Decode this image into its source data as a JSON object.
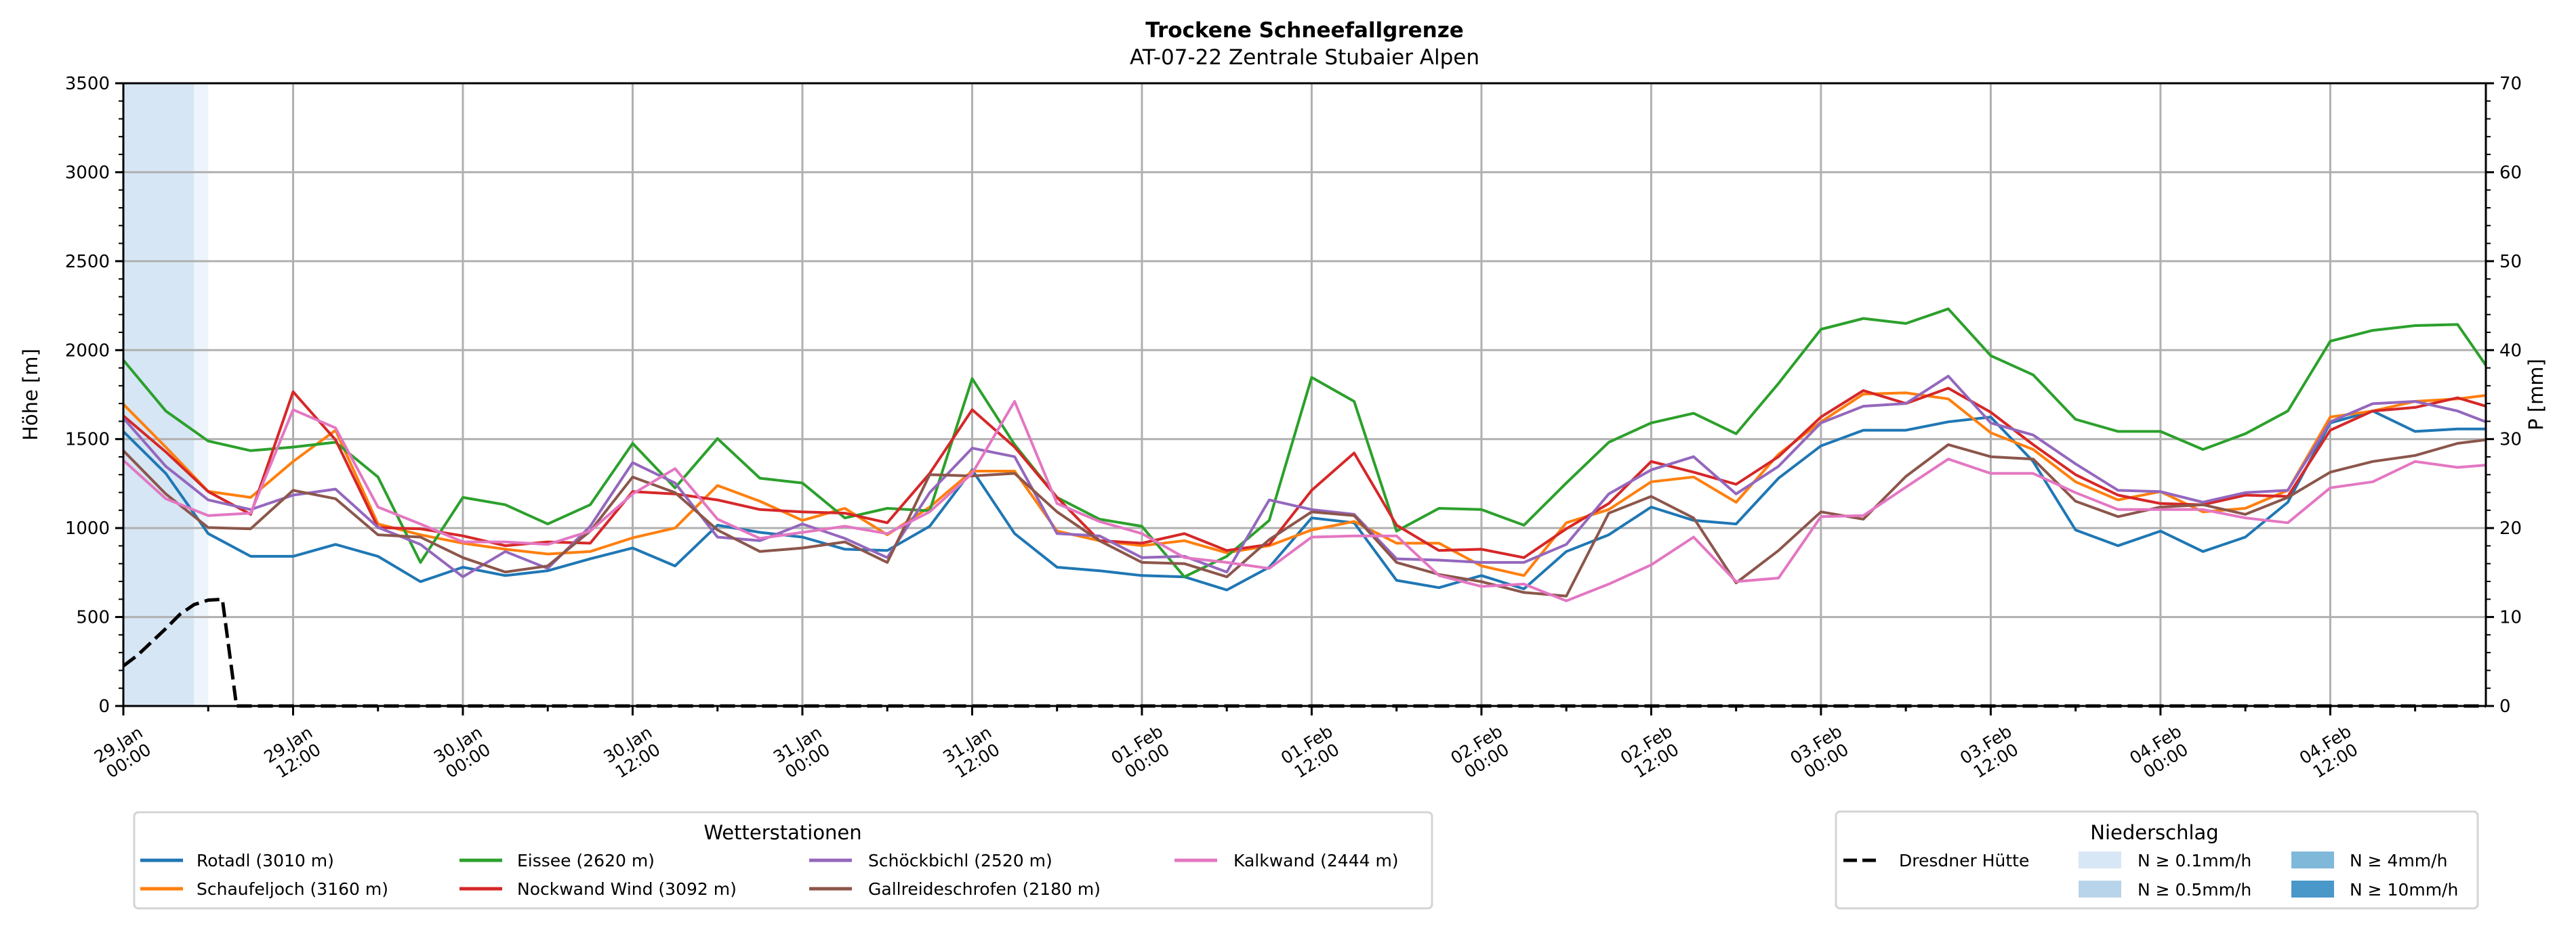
{
  "chart_data": {
    "type": "line",
    "title": "Trockene Schneefallgrenze",
    "subtitle": "AT-07-22 Zentrale Stubaier Alpen",
    "ylabel": "Höhe [m]",
    "ylabel_right": "P [mm]",
    "xlabel": "",
    "ylim": [
      0,
      3500
    ],
    "ylim_right": [
      0,
      70
    ],
    "yticks": [
      "0",
      "500",
      "1000",
      "1500",
      "2000",
      "2500",
      "3000",
      "3500"
    ],
    "yticks_right": [
      "0",
      "10",
      "20",
      "30",
      "40",
      "50",
      "60",
      "70"
    ],
    "x_unit": "hours since 29.Jan 00:00",
    "xlim_hours": [
      0,
      167
    ],
    "xticks": [
      {
        "hour": 0,
        "date": "29.Jan",
        "time": "00:00"
      },
      {
        "hour": 12,
        "date": "29.Jan",
        "time": "12:00"
      },
      {
        "hour": 24,
        "date": "30.Jan",
        "time": "00:00"
      },
      {
        "hour": 36,
        "date": "30.Jan",
        "time": "12:00"
      },
      {
        "hour": 48,
        "date": "31.Jan",
        "time": "00:00"
      },
      {
        "hour": 60,
        "date": "31.Jan",
        "time": "12:00"
      },
      {
        "hour": 72,
        "date": "01.Feb",
        "time": "00:00"
      },
      {
        "hour": 84,
        "date": "01.Feb",
        "time": "12:00"
      },
      {
        "hour": 96,
        "date": "02.Feb",
        "time": "00:00"
      },
      {
        "hour": 108,
        "date": "02.Feb",
        "time": "12:00"
      },
      {
        "hour": 120,
        "date": "03.Feb",
        "time": "00:00"
      },
      {
        "hour": 132,
        "date": "03.Feb",
        "time": "12:00"
      },
      {
        "hour": 144,
        "date": "04.Feb",
        "time": "00:00"
      },
      {
        "hour": 156,
        "date": "04.Feb",
        "time": "12:00"
      }
    ],
    "grid": true,
    "x": [
      0,
      3,
      6,
      9,
      12,
      15,
      18,
      21,
      24,
      27,
      30,
      33,
      36,
      39,
      42,
      45,
      48,
      51,
      54,
      57,
      60,
      63,
      66,
      69,
      72,
      75,
      78,
      81,
      84,
      87,
      90,
      93,
      96,
      99,
      102,
      105,
      108,
      111,
      114,
      117,
      120,
      123,
      126,
      129,
      132,
      135,
      138,
      141,
      144,
      147,
      150,
      153,
      156,
      159,
      162,
      165,
      167
    ],
    "series": [
      {
        "name": "Rotadl (3010 m)",
        "color": "#1f77b4",
        "values": [
          1543,
          1307,
          969,
          841,
          841,
          908,
          841,
          699,
          780,
          733,
          760,
          827,
          888,
          787,
          1016,
          976,
          949,
          881,
          874,
          1010,
          1327,
          969,
          780,
          760,
          733,
          726,
          652,
          780,
          1057,
          1030,
          706,
          665,
          733,
          658,
          868,
          962,
          1118,
          1043,
          1023,
          1280,
          1462,
          1550,
          1550,
          1597,
          1624,
          1374,
          989,
          901,
          983,
          868,
          949,
          1145,
          1591,
          1658,
          1543,
          1557,
          1557
        ]
      },
      {
        "name": "Schaufeljoch (3160 m)",
        "color": "#ff7f0e",
        "values": [
          1696,
          1455,
          1206,
          1172,
          1374,
          1550,
          1023,
          962,
          915,
          881,
          854,
          868,
          945,
          1000,
          1239,
          1151,
          1043,
          1111,
          962,
          1118,
          1320,
          1320,
          983,
          929,
          901,
          929,
          861,
          901,
          989,
          1037,
          915,
          915,
          787,
          733,
          1030,
          1104,
          1260,
          1287,
          1145,
          1415,
          1597,
          1753,
          1760,
          1726,
          1536,
          1442,
          1260,
          1158,
          1205,
          1091,
          1111,
          1212,
          1624,
          1658,
          1712,
          1726,
          1746
        ]
      },
      {
        "name": "Eissee (2620 m)",
        "color": "#2ca02c",
        "values": [
          1944,
          1658,
          1489,
          1435,
          1455,
          1482,
          1287,
          807,
          1172,
          1131,
          1023,
          1131,
          1476,
          1226,
          1503,
          1280,
          1253,
          1057,
          1111,
          1097,
          1840,
          1469,
          1172,
          1050,
          1010,
          726,
          841,
          1043,
          1847,
          1712,
          983,
          1111,
          1104,
          1016,
          1253,
          1482,
          1591,
          1645,
          1530,
          1813,
          2117,
          2178,
          2150,
          2232,
          1969,
          1861,
          1611,
          1543,
          1543,
          1442,
          1530,
          1658,
          2050,
          2111,
          2138,
          2144,
          1915
        ]
      },
      {
        "name": "Nockwand Wind (3092 m)",
        "color": "#d62728",
        "values": [
          1631,
          1428,
          1205,
          1077,
          1766,
          1496,
          1003,
          996,
          956,
          901,
          922,
          915,
          1205,
          1192,
          1158,
          1104,
          1091,
          1084,
          1030,
          1307,
          1665,
          1455,
          1172,
          929,
          915,
          969,
          874,
          908,
          1212,
          1422,
          1016,
          874,
          881,
          834,
          996,
          1138,
          1374,
          1314,
          1246,
          1401,
          1624,
          1773,
          1700,
          1786,
          1651,
          1469,
          1300,
          1185,
          1138,
          1131,
          1185,
          1178,
          1550,
          1658,
          1678,
          1732,
          1685
        ]
      },
      {
        "name": "Schöckbichl (2520 m)",
        "color": "#9467bd",
        "values": [
          1618,
          1347,
          1158,
          1104,
          1185,
          1219,
          1004,
          908,
          726,
          868,
          773,
          1010,
          1368,
          1253,
          949,
          929,
          1023,
          942,
          834,
          1199,
          1449,
          1401,
          969,
          956,
          834,
          841,
          753,
          1158,
          1104,
          1077,
          827,
          820,
          807,
          807,
          908,
          1192,
          1327,
          1401,
          1192,
          1347,
          1591,
          1685,
          1700,
          1854,
          1591,
          1523,
          1361,
          1212,
          1205,
          1145,
          1199,
          1212,
          1597,
          1699,
          1712,
          1658,
          1597
        ]
      },
      {
        "name": "Gallreideschrofen (2180 m)",
        "color": "#8c564b",
        "values": [
          1435,
          1192,
          1003,
          996,
          1212,
          1165,
          962,
          949,
          834,
          753,
          787,
          983,
          1287,
          1199,
          989,
          868,
          888,
          922,
          807,
          1300,
          1293,
          1307,
          1091,
          929,
          807,
          800,
          726,
          935,
          1091,
          1070,
          807,
          739,
          699,
          638,
          618,
          1084,
          1178,
          1057,
          692,
          874,
          1091,
          1050,
          1290,
          1469,
          1401,
          1388,
          1151,
          1064,
          1118,
          1131,
          1077,
          1172,
          1314,
          1374,
          1408,
          1476,
          1496
        ]
      },
      {
        "name": "Kalkwand (2444 m)",
        "color": "#e377c2",
        "values": [
          1381,
          1165,
          1070,
          1084,
          1665,
          1563,
          1118,
          1023,
          922,
          922,
          908,
          983,
          1192,
          1334,
          1050,
          942,
          976,
          1010,
          969,
          1091,
          1307,
          1712,
          1138,
          1037,
          969,
          834,
          807,
          773,
          949,
          956,
          956,
          733,
          672,
          685,
          591,
          685,
          793,
          949,
          699,
          719,
          1064,
          1070,
          1230,
          1388,
          1307,
          1307,
          1199,
          1104,
          1104,
          1104,
          1057,
          1030,
          1226,
          1260,
          1374,
          1341,
          1354
        ]
      }
    ],
    "precipitation": {
      "name": "Dresdner Hütte",
      "axis": "right",
      "color": "#000000",
      "style": "dashed",
      "x": [
        0,
        1,
        2,
        3,
        4,
        5,
        6,
        7,
        8,
        167
      ],
      "values": [
        4.5,
        5.7,
        7.2,
        8.7,
        10.3,
        11.4,
        11.9,
        12.0,
        0,
        0
      ]
    },
    "precip_bands": [
      {
        "start_hour": 0,
        "end_hour": 5,
        "color": "#d6e6f4"
      },
      {
        "start_hour": 5,
        "end_hour": 6,
        "color": "#edf4fb"
      }
    ],
    "legend_stations": {
      "title": "Wetterstationen",
      "placement": "bottom-left, below plot"
    },
    "legend_precip": {
      "title": "Niederschlag",
      "placement": "bottom-right, below plot",
      "line_label": "Dresdner Hütte",
      "levels": [
        {
          "label": "N ≥ 0.1mm/h",
          "color": "#d8e7f5"
        },
        {
          "label": "N ≥ 0.5mm/h",
          "color": "#b8d4ea"
        },
        {
          "label": "N ≥ 4mm/h",
          "color": "#80b8da"
        },
        {
          "label": "N ≥ 10mm/h",
          "color": "#4a98c9"
        }
      ]
    }
  }
}
